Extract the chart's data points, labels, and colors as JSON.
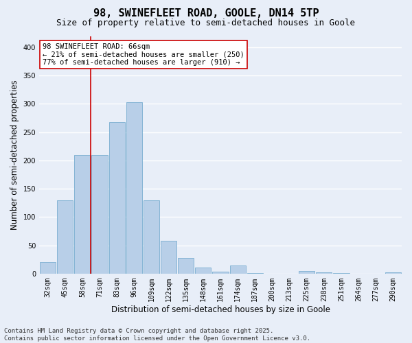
{
  "title": "98, SWINEFLEET ROAD, GOOLE, DN14 5TP",
  "subtitle": "Size of property relative to semi-detached houses in Goole",
  "xlabel": "Distribution of semi-detached houses by size in Goole",
  "ylabel": "Number of semi-detached properties",
  "categories": [
    "32sqm",
    "45sqm",
    "58sqm",
    "71sqm",
    "83sqm",
    "96sqm",
    "109sqm",
    "122sqm",
    "135sqm",
    "148sqm",
    "161sqm",
    "174sqm",
    "187sqm",
    "200sqm",
    "213sqm",
    "225sqm",
    "238sqm",
    "251sqm",
    "264sqm",
    "277sqm",
    "290sqm"
  ],
  "values": [
    20,
    130,
    210,
    210,
    268,
    303,
    130,
    58,
    28,
    11,
    4,
    14,
    1,
    0,
    0,
    5,
    2,
    1,
    0,
    0,
    2
  ],
  "bar_color": "#b8cfe8",
  "bar_edge_color": "#7aaed0",
  "vline_color": "#cc0000",
  "annotation_text": "98 SWINEFLEET ROAD: 66sqm\n← 21% of semi-detached houses are smaller (250)\n77% of semi-detached houses are larger (910) →",
  "annotation_box_color": "#ffffff",
  "annotation_box_edge": "#cc0000",
  "ylim": [
    0,
    420
  ],
  "yticks": [
    0,
    50,
    100,
    150,
    200,
    250,
    300,
    350,
    400
  ],
  "footer_text": "Contains HM Land Registry data © Crown copyright and database right 2025.\nContains public sector information licensed under the Open Government Licence v3.0.",
  "bg_color": "#e8eef8",
  "plot_bg_color": "#e8eef8",
  "grid_color": "#ffffff",
  "title_fontsize": 11,
  "subtitle_fontsize": 9,
  "axis_label_fontsize": 8.5,
  "tick_fontsize": 7,
  "annotation_fontsize": 7.5,
  "footer_fontsize": 6.5
}
